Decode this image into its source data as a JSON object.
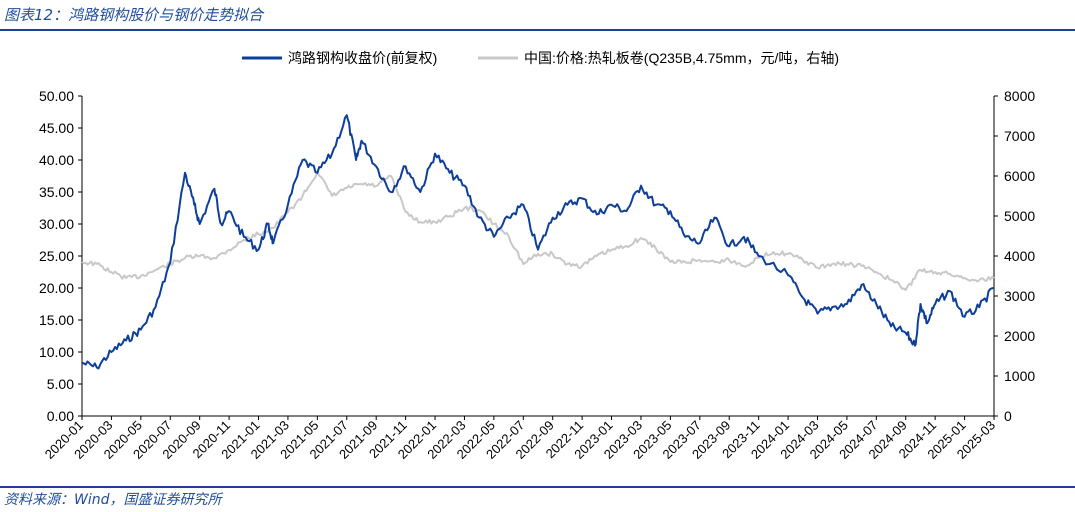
{
  "title": "图表12：鸿路钢构股价与钢价走势拟合",
  "source": "资料来源：Wind，国盛证券研究所",
  "colors": {
    "accent": "#1f4e9b",
    "series_left": "#0d3f9a",
    "series_right": "#c8c8c8"
  },
  "chart_data": {
    "type": "line",
    "legend_position": "top",
    "grid": false,
    "x_range": [
      "2020-01",
      "2025-03"
    ],
    "xtick_labels": [
      "2020-01",
      "2020-03",
      "2020-05",
      "2020-07",
      "2020-09",
      "2020-11",
      "2021-01",
      "2021-03",
      "2021-05",
      "2021-07",
      "2021-09",
      "2021-11",
      "2022-01",
      "2022-03",
      "2022-05",
      "2022-07",
      "2022-09",
      "2022-11",
      "2023-01",
      "2023-03",
      "2023-05",
      "2023-07",
      "2023-09",
      "2023-11",
      "2024-01",
      "2024-03",
      "2024-05",
      "2024-07",
      "2024-09",
      "2024-11",
      "2025-01",
      "2025-03"
    ],
    "y_left": {
      "range": [
        0,
        50
      ],
      "ticks": [
        "0.00",
        "5.00",
        "10.00",
        "15.00",
        "20.00",
        "25.00",
        "30.00",
        "35.00",
        "40.00",
        "45.00",
        "50.00"
      ]
    },
    "y_right": {
      "range": [
        0,
        8000
      ],
      "ticks": [
        "0",
        "1000",
        "2000",
        "3000",
        "4000",
        "5000",
        "6000",
        "7000",
        "8000"
      ]
    },
    "series": [
      {
        "name": "鸿路钢构收盘价(前复权)",
        "axis": "left",
        "points": [
          [
            "2020-01",
            8.3
          ],
          [
            "2020-02",
            7.6
          ],
          [
            "2020-03",
            10.0
          ],
          [
            "2020-04",
            11.8
          ],
          [
            "2020-05",
            13.5
          ],
          [
            "2020-06",
            17.0
          ],
          [
            "2020-07",
            24.0
          ],
          [
            "2020-08",
            38.0
          ],
          [
            "2020-08-20",
            33.0
          ],
          [
            "2020-09",
            30.0
          ],
          [
            "2020-10",
            35.5
          ],
          [
            "2020-10-15",
            30.0
          ],
          [
            "2020-11",
            32.0
          ],
          [
            "2020-12",
            28.0
          ],
          [
            "2021-01",
            26.0
          ],
          [
            "2021-01-20",
            30.0
          ],
          [
            "2021-02",
            27.0
          ],
          [
            "2021-03",
            33.0
          ],
          [
            "2021-04",
            40.0
          ],
          [
            "2021-05",
            38.0
          ],
          [
            "2021-06",
            41.0
          ],
          [
            "2021-07",
            47.0
          ],
          [
            "2021-07-20",
            40.0
          ],
          [
            "2021-08",
            43.0
          ],
          [
            "2021-09",
            39.0
          ],
          [
            "2021-10",
            35.0
          ],
          [
            "2021-11",
            39.0
          ],
          [
            "2021-12",
            35.0
          ],
          [
            "2022-01",
            41.0
          ],
          [
            "2022-02",
            38.0
          ],
          [
            "2022-03",
            36.0
          ],
          [
            "2022-04",
            31.0
          ],
          [
            "2022-05",
            28.0
          ],
          [
            "2022-06",
            31.0
          ],
          [
            "2022-07",
            33.0
          ],
          [
            "2022-08",
            26.0
          ],
          [
            "2022-09",
            31.0
          ],
          [
            "2022-10",
            33.0
          ],
          [
            "2022-11",
            34.0
          ],
          [
            "2022-12",
            31.5
          ],
          [
            "2023-01",
            33.0
          ],
          [
            "2023-02",
            32.0
          ],
          [
            "2023-03",
            36.0
          ],
          [
            "2023-04",
            33.0
          ],
          [
            "2023-05",
            32.0
          ],
          [
            "2023-06",
            28.0
          ],
          [
            "2023-07",
            27.0
          ],
          [
            "2023-08",
            31.0
          ],
          [
            "2023-09",
            26.5
          ],
          [
            "2023-10",
            28.0
          ],
          [
            "2023-11",
            25.0
          ],
          [
            "2024-01",
            22.0
          ],
          [
            "2024-02",
            18.5
          ],
          [
            "2024-03",
            16.0
          ],
          [
            "2024-04",
            17.0
          ],
          [
            "2024-05",
            17.5
          ],
          [
            "2024-06",
            20.5
          ],
          [
            "2024-07",
            17.5
          ],
          [
            "2024-08",
            14.0
          ],
          [
            "2024-09",
            13.0
          ],
          [
            "2024-09-20",
            11.0
          ],
          [
            "2024-10",
            17.5
          ],
          [
            "2024-10-15",
            14.5
          ],
          [
            "2024-11",
            17.5
          ],
          [
            "2024-12",
            19.5
          ],
          [
            "2025-01",
            15.5
          ],
          [
            "2025-02",
            17.0
          ],
          [
            "2025-03",
            20.0
          ]
        ]
      },
      {
        "name": "中国:价格:热轧板卷(Q235B,4.75mm，元/吨，右轴)",
        "axis": "right",
        "points": [
          [
            "2020-01",
            3850
          ],
          [
            "2020-02",
            3800
          ],
          [
            "2020-03",
            3600
          ],
          [
            "2020-04",
            3450
          ],
          [
            "2020-05",
            3500
          ],
          [
            "2020-06",
            3650
          ],
          [
            "2020-07",
            3800
          ],
          [
            "2020-08",
            3950
          ],
          [
            "2020-09",
            4000
          ],
          [
            "2020-10",
            3950
          ],
          [
            "2020-11",
            4150
          ],
          [
            "2020-12",
            4400
          ],
          [
            "2021-01",
            4550
          ],
          [
            "2021-02",
            4700
          ],
          [
            "2021-03",
            5100
          ],
          [
            "2021-04",
            5500
          ],
          [
            "2021-05",
            6100
          ],
          [
            "2021-06",
            5500
          ],
          [
            "2021-07",
            5700
          ],
          [
            "2021-08",
            5800
          ],
          [
            "2021-09",
            5750
          ],
          [
            "2021-10",
            6000
          ],
          [
            "2021-11",
            5100
          ],
          [
            "2021-12",
            4850
          ],
          [
            "2022-01",
            4850
          ],
          [
            "2022-02",
            5000
          ],
          [
            "2022-03",
            5200
          ],
          [
            "2022-04",
            5150
          ],
          [
            "2022-05",
            4800
          ],
          [
            "2022-06",
            4500
          ],
          [
            "2022-07",
            3800
          ],
          [
            "2022-08",
            4050
          ],
          [
            "2022-09",
            4050
          ],
          [
            "2022-10",
            3800
          ],
          [
            "2022-11",
            3750
          ],
          [
            "2022-12",
            4000
          ],
          [
            "2023-01",
            4150
          ],
          [
            "2023-02",
            4250
          ],
          [
            "2023-03",
            4450
          ],
          [
            "2023-04",
            4200
          ],
          [
            "2023-05",
            3850
          ],
          [
            "2023-06",
            3850
          ],
          [
            "2023-07",
            3900
          ],
          [
            "2023-08",
            3850
          ],
          [
            "2023-09",
            3900
          ],
          [
            "2023-10",
            3750
          ],
          [
            "2023-11",
            3950
          ],
          [
            "2023-12",
            4100
          ],
          [
            "2024-01",
            4050
          ],
          [
            "2024-02",
            3900
          ],
          [
            "2024-03",
            3700
          ],
          [
            "2024-04",
            3800
          ],
          [
            "2024-05",
            3800
          ],
          [
            "2024-06",
            3750
          ],
          [
            "2024-07",
            3600
          ],
          [
            "2024-08",
            3400
          ],
          [
            "2024-09",
            3150
          ],
          [
            "2024-10",
            3650
          ],
          [
            "2024-11",
            3600
          ],
          [
            "2024-12",
            3550
          ],
          [
            "2025-01",
            3450
          ],
          [
            "2025-02",
            3400
          ],
          [
            "2025-03",
            3450
          ]
        ]
      }
    ]
  }
}
